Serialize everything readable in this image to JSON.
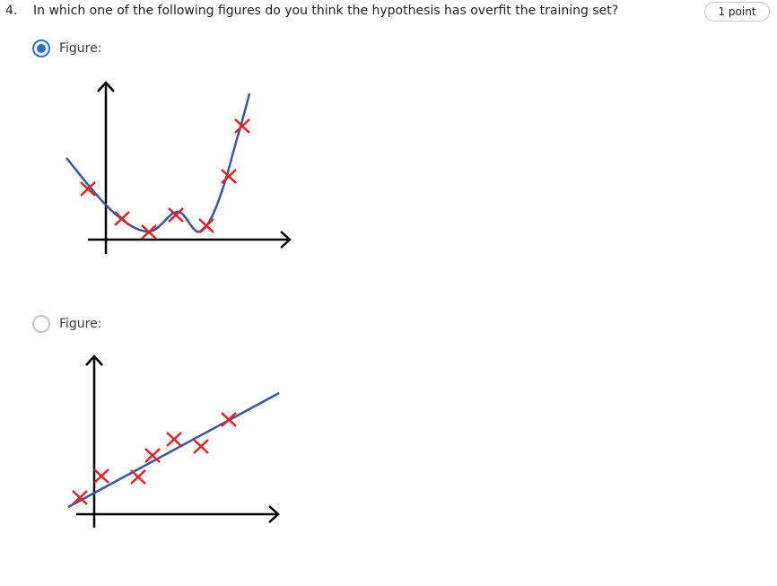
{
  "question": {
    "number": "4.",
    "text": "In which one of the following figures do you think the hypothesis has overfit the training set?",
    "points": "1 point"
  },
  "options": [
    {
      "label": "Figure:",
      "selected": true,
      "figure_icon": "overfit-curve-figure"
    },
    {
      "label": "Figure:",
      "selected": false,
      "figure_icon": "linear-fit-figure"
    }
  ],
  "colors": {
    "accent": "#2a73cc",
    "curve": "#3b5797",
    "marker": "#e0202a",
    "axis": "#000000"
  }
}
